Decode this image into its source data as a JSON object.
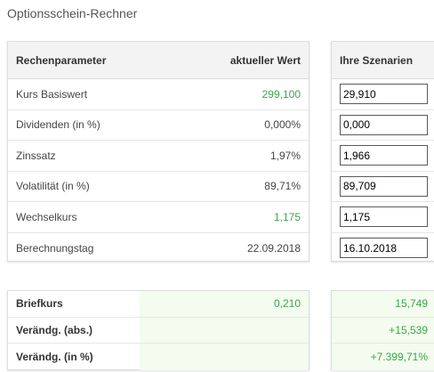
{
  "title": "Optionsschein-Rechner",
  "params": {
    "header_label": "Rechenparameter",
    "header_value": "aktueller Wert",
    "rows": [
      {
        "label": "Kurs Basiswert",
        "value": "299,100"
      },
      {
        "label": "Dividenden (in %)",
        "value": "0,000%"
      },
      {
        "label": "Zinssatz",
        "value": "1,97%"
      },
      {
        "label": "Volatilität (in %)",
        "value": "89,71%"
      },
      {
        "label": "Wechselkurs",
        "value": "1,175"
      },
      {
        "label": "Berechnungstag",
        "value": "22.09.2018"
      }
    ]
  },
  "scenarios": {
    "header": "Ihre Szenarien",
    "inputs": [
      "29,910",
      "0,000",
      "1,966",
      "89,709",
      "1,175",
      "16.10.2018"
    ]
  },
  "results": {
    "rows": [
      {
        "label": "Briefkurs",
        "current": "0,210",
        "scenario": "15,749"
      },
      {
        "label": "Verändg. (abs.)",
        "current": "",
        "scenario": "+15,539"
      },
      {
        "label": "Verändg. (in %)",
        "current": "",
        "scenario": "+7.399,71%"
      }
    ]
  },
  "colors": {
    "positive": "#3aa64a",
    "header_bg": "#f3f3f3",
    "result_bg": "#f4fbef"
  }
}
